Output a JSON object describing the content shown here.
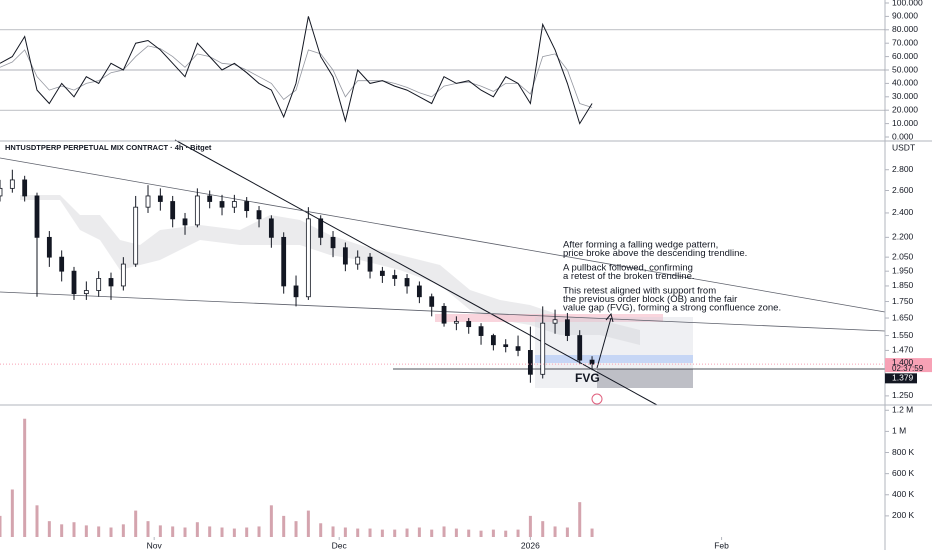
{
  "chart_data": [
    {
      "type": "line",
      "xlim": [
        0,
        143.5
      ],
      "ylim": [
        0,
        100
      ],
      "yticks": [
        {
          "value": 100,
          "label": "100.000"
        },
        {
          "value": 90,
          "label": "90.000"
        },
        {
          "value": 80,
          "label": "80.000"
        },
        {
          "value": 70,
          "label": "70.000"
        },
        {
          "value": 60,
          "label": "60.000"
        },
        {
          "value": 50,
          "label": "50.000"
        },
        {
          "value": 40,
          "label": "40.000"
        },
        {
          "value": 30,
          "label": "30.000"
        },
        {
          "value": 20,
          "label": "20.000"
        },
        {
          "value": 10,
          "label": "10.000"
        },
        {
          "value": 0,
          "label": "0.000"
        }
      ],
      "bands": [
        80,
        50,
        20
      ],
      "x": [
        0,
        2,
        4,
        6,
        8,
        10,
        12,
        14,
        16,
        18,
        20,
        22,
        24,
        26,
        28,
        30,
        32,
        34,
        36,
        38,
        40,
        42,
        44,
        46,
        48,
        50,
        52,
        54,
        56,
        58,
        60,
        62,
        64,
        66,
        68,
        70,
        72,
        74,
        76,
        78,
        80,
        82,
        84,
        86,
        88,
        90,
        92,
        94,
        96
      ],
      "series": [
        {
          "color": "#9598a1",
          "values": [
            52,
            56,
            65,
            45,
            35,
            38,
            35,
            40,
            42,
            48,
            50,
            60,
            68,
            66,
            60,
            52,
            62,
            60,
            55,
            54,
            50,
            45,
            40,
            28,
            35,
            65,
            62,
            50,
            30,
            42,
            42,
            42,
            40,
            37,
            33,
            30,
            38,
            40,
            41,
            38,
            34,
            40,
            40,
            32,
            60,
            62,
            50,
            25,
            22
          ]
        },
        {
          "color": "#131722",
          "values": [
            55,
            60,
            75,
            35,
            25,
            40,
            30,
            45,
            40,
            55,
            50,
            70,
            72,
            65,
            55,
            45,
            70,
            60,
            50,
            55,
            48,
            40,
            35,
            15,
            40,
            90,
            60,
            45,
            12,
            50,
            40,
            42,
            38,
            35,
            30,
            25,
            45,
            40,
            42,
            35,
            30,
            45,
            40,
            25,
            84,
            65,
            40,
            10,
            25
          ]
        }
      ]
    },
    {
      "type": "candlestick",
      "title": "HNTUSDTPERP PERPETUAL MIX CONTRACT · 4h · Bitget",
      "unit": "USDT",
      "xlim": [
        0,
        143.5
      ],
      "ylim": [
        1.21,
        3.08
      ],
      "log_scale": true,
      "color": "#131722",
      "yticks": [
        {
          "value": 2.8,
          "label": "2.800"
        },
        {
          "value": 2.6,
          "label": "2.600"
        },
        {
          "value": 2.4,
          "label": "2.400"
        },
        {
          "value": 2.2,
          "label": "2.200"
        },
        {
          "value": 2.05,
          "label": "2.050"
        },
        {
          "value": 1.95,
          "label": "1.950"
        },
        {
          "value": 1.85,
          "label": "1.850"
        },
        {
          "value": 1.75,
          "label": "1.750"
        },
        {
          "value": 1.65,
          "label": "1.650"
        },
        {
          "value": 1.55,
          "label": "1.550"
        },
        {
          "value": 1.47,
          "label": "1.470"
        },
        {
          "value": 1.25,
          "label": "1.250"
        }
      ],
      "x": [
        0,
        2,
        4,
        6,
        8,
        10,
        12,
        14,
        16,
        18,
        20,
        22,
        24,
        26,
        28,
        30,
        32,
        34,
        36,
        38,
        40,
        42,
        44,
        46,
        48,
        50,
        52,
        54,
        56,
        58,
        60,
        62,
        64,
        66,
        68,
        70,
        72,
        74,
        76,
        78,
        80,
        82,
        84,
        86,
        88,
        90,
        92,
        94,
        96
      ],
      "open": [
        2.55,
        2.62,
        2.7,
        2.55,
        2.2,
        2.05,
        1.95,
        1.8,
        1.82,
        1.9,
        1.85,
        2.0,
        2.45,
        2.55,
        2.5,
        2.35,
        2.3,
        2.55,
        2.5,
        2.45,
        2.5,
        2.42,
        2.35,
        2.2,
        1.85,
        1.78,
        2.35,
        2.2,
        2.12,
        2.0,
        2.05,
        1.95,
        1.92,
        1.9,
        1.85,
        1.78,
        1.72,
        1.62,
        1.63,
        1.6,
        1.55,
        1.5,
        1.49,
        1.47,
        1.35,
        1.62,
        1.64,
        1.55,
        1.42
      ],
      "high": [
        2.7,
        2.8,
        2.74,
        2.58,
        2.25,
        2.1,
        1.98,
        1.88,
        1.95,
        1.94,
        2.05,
        2.55,
        2.65,
        2.62,
        2.55,
        2.4,
        2.62,
        2.6,
        2.56,
        2.56,
        2.54,
        2.46,
        2.38,
        2.24,
        1.92,
        2.45,
        2.38,
        2.25,
        2.16,
        2.1,
        2.08,
        1.98,
        1.96,
        1.93,
        1.88,
        1.8,
        1.74,
        1.66,
        1.65,
        1.62,
        1.56,
        1.53,
        1.55,
        1.6,
        1.72,
        1.7,
        1.68,
        1.58,
        1.44
      ],
      "low": [
        2.5,
        2.58,
        2.5,
        1.78,
        1.98,
        1.88,
        1.76,
        1.76,
        1.78,
        1.76,
        1.82,
        1.98,
        2.4,
        2.42,
        2.28,
        2.22,
        2.28,
        2.44,
        2.38,
        2.4,
        2.36,
        2.28,
        2.12,
        1.8,
        1.72,
        1.76,
        2.14,
        2.05,
        1.95,
        1.96,
        1.9,
        1.87,
        1.85,
        1.8,
        1.74,
        1.66,
        1.6,
        1.58,
        1.56,
        1.5,
        1.47,
        1.46,
        1.44,
        1.31,
        1.33,
        1.56,
        1.52,
        1.4,
        1.37
      ],
      "close": [
        2.62,
        2.7,
        2.55,
        2.2,
        2.05,
        1.95,
        1.8,
        1.82,
        1.9,
        1.85,
        2.0,
        2.45,
        2.55,
        2.5,
        2.35,
        2.3,
        2.55,
        2.5,
        2.45,
        2.5,
        2.42,
        2.35,
        2.2,
        1.85,
        1.78,
        2.35,
        2.2,
        2.12,
        2.0,
        2.05,
        1.95,
        1.92,
        1.9,
        1.85,
        1.78,
        1.72,
        1.62,
        1.63,
        1.6,
        1.55,
        1.5,
        1.49,
        1.47,
        1.35,
        1.62,
        1.64,
        1.55,
        1.42,
        1.4
      ],
      "last_price": {
        "value": 1.4,
        "label": "1.400",
        "countdown": "02:37:59",
        "color": "#f7a1b5"
      },
      "close_marker": {
        "value": 1.379,
        "label": "1.379"
      },
      "annotation": [
        [
          "After forming a falling wedge pattern,",
          "price broke above the descending trendline."
        ],
        [
          "A pullback followed, confirming",
          "a retest of the broken trendline."
        ],
        [
          "This retest aligned with support from",
          "the previous order block (OB) and the fair",
          "value gap (FVG), forming a strong confluence zone."
        ]
      ],
      "fvg_label": "FVG"
    },
    {
      "type": "bar",
      "xlim": [
        0,
        143.5
      ],
      "ylim": [
        0,
        1250000
      ],
      "color": "#d4a4ae",
      "yticks": [
        {
          "value": 1200000,
          "label": "1.2 M"
        },
        {
          "value": 1000000,
          "label": "1 M"
        },
        {
          "value": 800000,
          "label": "800 K"
        },
        {
          "value": 600000,
          "label": "600 K"
        },
        {
          "value": 400000,
          "label": "400 K"
        },
        {
          "value": 200000,
          "label": "200 K"
        }
      ],
      "xticks": [
        {
          "value": 25,
          "label": "Nov"
        },
        {
          "value": 55,
          "label": "Dec"
        },
        {
          "value": 86,
          "label": "2026"
        },
        {
          "value": 117,
          "label": "Feb"
        }
      ],
      "x": [
        0,
        2,
        4,
        6,
        8,
        10,
        12,
        14,
        16,
        18,
        20,
        22,
        24,
        26,
        28,
        30,
        32,
        34,
        36,
        38,
        40,
        42,
        44,
        46,
        48,
        50,
        52,
        54,
        56,
        58,
        60,
        62,
        64,
        66,
        68,
        70,
        72,
        74,
        76,
        78,
        80,
        82,
        84,
        86,
        88,
        90,
        92,
        94,
        96
      ],
      "values": [
        200000,
        450000,
        1120000,
        300000,
        150000,
        120000,
        140000,
        110000,
        100000,
        90000,
        120000,
        250000,
        150000,
        110000,
        100000,
        90000,
        140000,
        100000,
        90000,
        80000,
        90000,
        100000,
        300000,
        200000,
        150000,
        250000,
        130000,
        100000,
        90000,
        80000,
        80000,
        70000,
        70000,
        80000,
        90000,
        70000,
        100000,
        80000,
        70000,
        60000,
        70000,
        60000,
        70000,
        200000,
        150000,
        100000,
        90000,
        330000,
        80000
      ]
    }
  ]
}
